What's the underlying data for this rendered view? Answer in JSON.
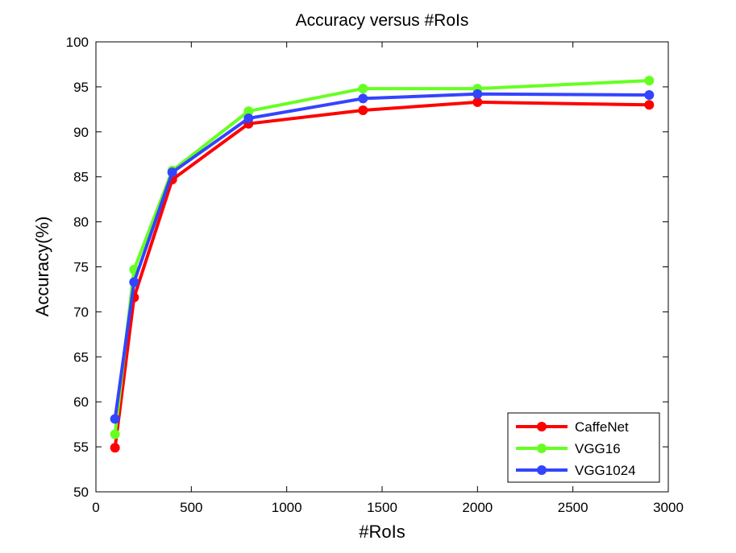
{
  "chart_data": {
    "type": "line",
    "title": "Accuracy versus #RoIs",
    "xlabel": "#RoIs",
    "ylabel": "Accuracy(%)",
    "xlim": [
      0,
      3000
    ],
    "ylim": [
      50,
      100
    ],
    "xticks": [
      0,
      500,
      1000,
      1500,
      2000,
      2500,
      3000
    ],
    "yticks": [
      50,
      55,
      60,
      65,
      70,
      75,
      80,
      85,
      90,
      95,
      100
    ],
    "x": [
      100,
      200,
      400,
      800,
      1400,
      2000,
      2900
    ],
    "grid": false,
    "legend_position": "bottom-right",
    "series": [
      {
        "name": "CaffeNet",
        "color": "#ff0000",
        "values": [
          54.9,
          71.6,
          84.7,
          90.9,
          92.4,
          93.3,
          93.0
        ]
      },
      {
        "name": "VGG16",
        "color": "#66ff22",
        "values": [
          56.4,
          74.7,
          85.7,
          92.3,
          94.8,
          94.8,
          95.7
        ]
      },
      {
        "name": "VGG1024",
        "color": "#3344ff",
        "values": [
          58.1,
          73.3,
          85.5,
          91.5,
          93.7,
          94.2,
          94.1
        ]
      }
    ]
  }
}
